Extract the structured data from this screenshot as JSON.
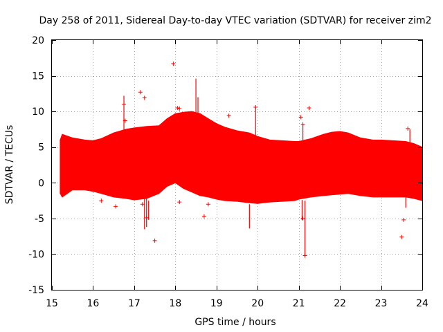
{
  "chart_data": {
    "type": "scatter",
    "title": "Day 258 of 2011, Sidereal Day-to-day VTEC variation (SDTVAR) for receiver zim2",
    "xlabel": "GPS time / hours",
    "ylabel": "SDTVAR / TECUs",
    "xlim": [
      15,
      24
    ],
    "ylim": [
      -15,
      20
    ],
    "x_ticks": [
      15,
      16,
      17,
      18,
      19,
      20,
      21,
      22,
      23,
      24
    ],
    "y_ticks": [
      -15,
      -10,
      -5,
      0,
      5,
      10,
      15,
      20
    ],
    "x_tick_labels": [
      "15",
      "16",
      "17",
      "18",
      "19",
      "20",
      "21",
      "22",
      "23",
      "24"
    ],
    "y_tick_labels": [
      "-15",
      "-10",
      "-5",
      "0",
      "5",
      "10",
      "15",
      "20"
    ],
    "grid": true,
    "color": "#ff0000",
    "series": [
      {
        "name": "SDTVAR",
        "band_upper": {
          "x": [
            15.2,
            15.25,
            15.5,
            15.8,
            16.0,
            16.2,
            16.5,
            16.8,
            17.0,
            17.3,
            17.6,
            17.8,
            18.0,
            18.2,
            18.4,
            18.6,
            18.8,
            19.0,
            19.2,
            19.5,
            19.8,
            20.0,
            20.3,
            20.6,
            20.9,
            21.0,
            21.3,
            21.6,
            21.8,
            22.0,
            22.2,
            22.5,
            22.8,
            23.0,
            23.3,
            23.6,
            23.8,
            24.0
          ],
          "y": [
            6.0,
            6.8,
            6.3,
            6.0,
            5.9,
            6.2,
            7.0,
            7.5,
            7.7,
            7.9,
            8.0,
            9.0,
            9.7,
            9.9,
            10.0,
            9.7,
            9.0,
            8.3,
            7.8,
            7.3,
            7.0,
            6.5,
            6.0,
            5.9,
            5.8,
            5.8,
            6.2,
            6.8,
            7.1,
            7.2,
            7.0,
            6.3,
            6.0,
            6.0,
            5.9,
            5.8,
            5.5,
            5.0
          ]
        },
        "band_lower": {
          "x": [
            15.2,
            15.25,
            15.5,
            15.8,
            16.0,
            16.2,
            16.5,
            16.8,
            17.0,
            17.3,
            17.6,
            17.8,
            18.0,
            18.2,
            18.4,
            18.6,
            18.8,
            19.0,
            19.2,
            19.5,
            19.8,
            20.0,
            20.3,
            20.6,
            20.9,
            21.0,
            21.3,
            21.6,
            21.8,
            22.0,
            22.2,
            22.5,
            22.8,
            23.0,
            23.3,
            23.6,
            23.8,
            24.0
          ],
          "y": [
            -1.5,
            -2.0,
            -1.0,
            -1.0,
            -1.2,
            -1.5,
            -2.0,
            -2.2,
            -2.4,
            -2.2,
            -1.5,
            -0.5,
            0.0,
            -0.8,
            -1.3,
            -1.8,
            -2.0,
            -2.3,
            -2.5,
            -2.6,
            -2.8,
            -2.9,
            -2.7,
            -2.6,
            -2.5,
            -2.3,
            -2.0,
            -1.8,
            -1.7,
            -1.6,
            -1.5,
            -1.8,
            -2.0,
            -2.0,
            -2.0,
            -2.0,
            -2.2,
            -2.5
          ]
        },
        "spikes": [
          {
            "x": 16.75,
            "y_min": 7.0,
            "y_max": 12.2
          },
          {
            "x": 17.25,
            "y_min": -6.5,
            "y_max": -2.0
          },
          {
            "x": 17.3,
            "y_min": -6.2,
            "y_max": -2.0
          },
          {
            "x": 17.35,
            "y_min": -5.2,
            "y_max": -2.5
          },
          {
            "x": 18.5,
            "y_min": 9.5,
            "y_max": 14.6
          },
          {
            "x": 18.55,
            "y_min": 9.8,
            "y_max": 12.0
          },
          {
            "x": 19.95,
            "y_min": 6.5,
            "y_max": 10.7
          },
          {
            "x": 19.8,
            "y_min": -6.4,
            "y_max": -3.0
          },
          {
            "x": 21.08,
            "y_min": -5.2,
            "y_max": -2.4
          },
          {
            "x": 21.15,
            "y_min": -10.3,
            "y_max": -2.5
          },
          {
            "x": 21.1,
            "y_min": 6.0,
            "y_max": 8.3
          },
          {
            "x": 23.7,
            "y_min": 5.5,
            "y_max": 7.5
          },
          {
            "x": 23.6,
            "y_min": -3.5,
            "y_max": -1.8
          }
        ],
        "outliers": [
          {
            "x": 17.95,
            "y": 16.7
          },
          {
            "x": 17.15,
            "y": 12.7
          },
          {
            "x": 17.25,
            "y": 11.9
          },
          {
            "x": 16.75,
            "y": 11.0
          },
          {
            "x": 16.78,
            "y": 8.7
          },
          {
            "x": 18.05,
            "y": 10.5
          },
          {
            "x": 18.1,
            "y": 10.4
          },
          {
            "x": 19.3,
            "y": 9.4
          },
          {
            "x": 19.95,
            "y": 10.6
          },
          {
            "x": 21.05,
            "y": 9.2
          },
          {
            "x": 21.25,
            "y": 10.5
          },
          {
            "x": 21.1,
            "y": 8.2
          },
          {
            "x": 23.65,
            "y": 7.6
          },
          {
            "x": 23.55,
            "y": -5.2
          },
          {
            "x": 23.5,
            "y": -7.6
          },
          {
            "x": 17.5,
            "y": -8.1
          },
          {
            "x": 17.3,
            "y": -4.9
          },
          {
            "x": 17.2,
            "y": -3.0
          },
          {
            "x": 18.1,
            "y": -2.7
          },
          {
            "x": 18.7,
            "y": -4.7
          },
          {
            "x": 18.8,
            "y": -3.0
          },
          {
            "x": 21.15,
            "y": -10.2
          },
          {
            "x": 21.1,
            "y": -5.0
          },
          {
            "x": 16.2,
            "y": -2.5
          },
          {
            "x": 16.55,
            "y": -3.3
          },
          {
            "x": 17.9,
            "y": 0.3
          }
        ]
      }
    ]
  }
}
